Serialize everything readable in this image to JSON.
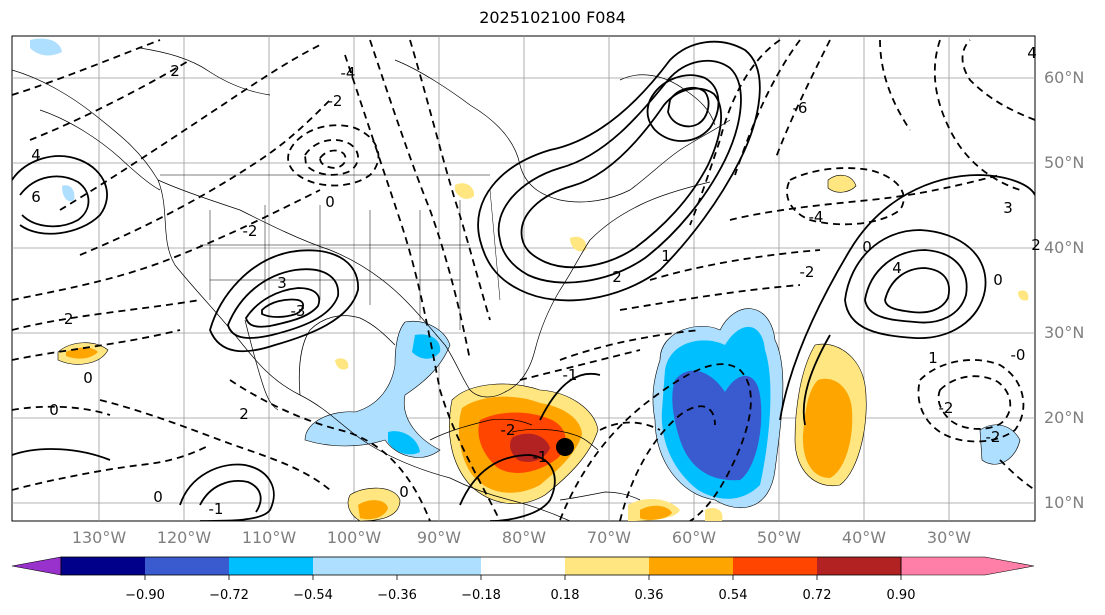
{
  "title": "2025102100 F084",
  "map": {
    "lat_labels": [
      "60°N",
      "50°N",
      "40°N",
      "30°N",
      "20°N",
      "10°N"
    ],
    "lon_labels": [
      "130°W",
      "120°W",
      "110°W",
      "100°W",
      "90°W",
      "80°W",
      "70°W",
      "60°W",
      "50°W",
      "40°W",
      "30°W"
    ],
    "contour_labels": [
      "4",
      "2",
      "-4",
      "-2",
      "0",
      "-6",
      "6",
      "-4",
      "0",
      "3",
      "-3",
      "4",
      "-2",
      "2",
      "1",
      "-2",
      "2",
      "0",
      "0",
      "-1",
      "-2",
      "-1",
      "0",
      "-1",
      "0",
      "2",
      "-2",
      "1",
      "3",
      "4",
      "0",
      "-2",
      "-0",
      "-2"
    ],
    "marker": "storm-position"
  },
  "colorbar": {
    "ticks": [
      "−0.90",
      "−0.72",
      "−0.54",
      "−0.36",
      "−0.18",
      "0.18",
      "0.36",
      "0.54",
      "0.72",
      "0.90"
    ],
    "colors": [
      "#9932cc",
      "#00008b",
      "#3a5bd0",
      "#00bfff",
      "#afdfff",
      "#ffffff",
      "#ffe680",
      "#ffa500",
      "#ff4500",
      "#b22222",
      "#ff7fa8"
    ]
  }
}
